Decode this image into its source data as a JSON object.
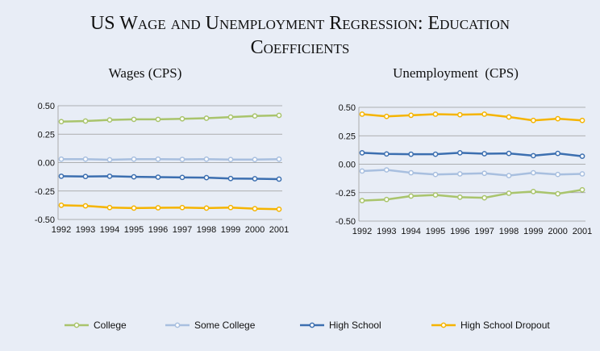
{
  "title": "US Wage and Unemployment Regression: Education Coefficients",
  "chart_data": [
    {
      "type": "line",
      "title": "Wages (CPS)",
      "categories": [
        "1992",
        "1993",
        "1994",
        "1995",
        "1996",
        "1997",
        "1998",
        "1999",
        "2000",
        "2001"
      ],
      "ylim": [
        -0.5,
        0.5
      ],
      "yticks": [
        {
          "value": 0.5,
          "label": "0.50"
        },
        {
          "value": 0.25,
          "label": "0.25"
        },
        {
          "value": 0,
          "label": "0.00"
        },
        {
          "value": -0.25,
          "label": "-0.25"
        },
        {
          "value": -0.5,
          "label": "-0.50"
        }
      ],
      "grid": true,
      "series": [
        {
          "name": "College",
          "color": "#a9c46c",
          "values": [
            0.36,
            0.365,
            0.375,
            0.38,
            0.38,
            0.385,
            0.39,
            0.4,
            0.41,
            0.415
          ]
        },
        {
          "name": "Some College",
          "color": "#a8bfdf",
          "values": [
            0.03,
            0.03,
            0.025,
            0.03,
            0.03,
            0.028,
            0.03,
            0.027,
            0.027,
            0.03
          ]
        },
        {
          "name": "High School",
          "color": "#3c6fb0",
          "values": [
            -0.12,
            -0.122,
            -0.12,
            -0.125,
            -0.128,
            -0.13,
            -0.132,
            -0.14,
            -0.142,
            -0.145
          ]
        },
        {
          "name": "High School Dropout",
          "color": "#f5b400",
          "values": [
            -0.375,
            -0.38,
            -0.395,
            -0.4,
            -0.397,
            -0.395,
            -0.4,
            -0.395,
            -0.405,
            -0.41
          ]
        }
      ]
    },
    {
      "type": "line",
      "title": "Unemployment  (CPS)",
      "categories": [
        "1992",
        "1993",
        "1994",
        "1995",
        "1996",
        "1997",
        "1998",
        "1999",
        "2000",
        "2001"
      ],
      "ylim": [
        -0.5,
        0.5
      ],
      "yticks": [
        {
          "value": 0.5,
          "label": "0.50"
        },
        {
          "value": 0.25,
          "label": "0.25"
        },
        {
          "value": 0,
          "label": "0.00"
        },
        {
          "value": -0.25,
          "label": "-0.25"
        },
        {
          "value": -0.5,
          "label": "-0.50"
        }
      ],
      "grid": true,
      "series": [
        {
          "name": "College",
          "color": "#a9c46c",
          "values": [
            -0.32,
            -0.31,
            -0.28,
            -0.27,
            -0.29,
            -0.295,
            -0.255,
            -0.24,
            -0.26,
            -0.225
          ]
        },
        {
          "name": "Some College",
          "color": "#a8bfdf",
          "values": [
            -0.06,
            -0.05,
            -0.075,
            -0.09,
            -0.085,
            -0.08,
            -0.1,
            -0.075,
            -0.09,
            -0.085
          ]
        },
        {
          "name": "High School",
          "color": "#3c6fb0",
          "values": [
            0.1,
            0.09,
            0.088,
            0.088,
            0.1,
            0.092,
            0.095,
            0.075,
            0.095,
            0.07
          ]
        },
        {
          "name": "High School Dropout",
          "color": "#f5b400",
          "values": [
            0.44,
            0.42,
            0.43,
            0.44,
            0.435,
            0.44,
            0.415,
            0.385,
            0.4,
            0.385
          ]
        }
      ]
    }
  ]
}
